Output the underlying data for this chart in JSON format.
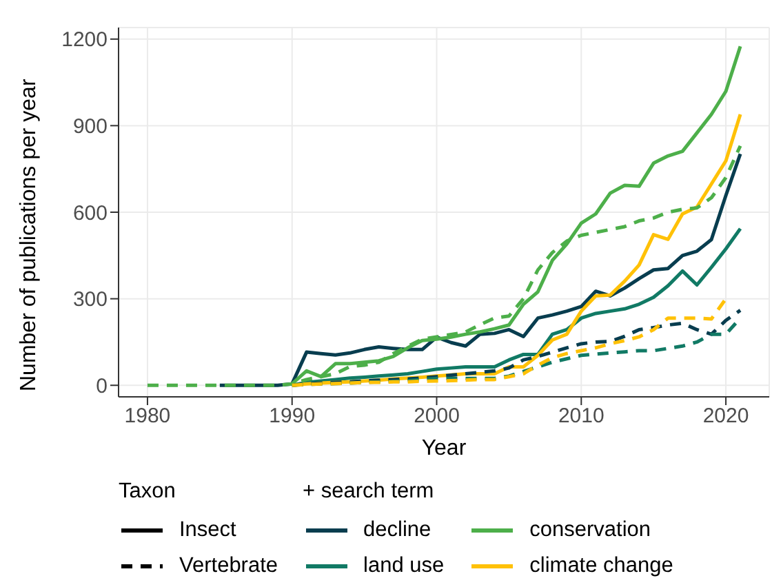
{
  "chart_data": {
    "type": "line",
    "xlabel": "Year",
    "ylabel": "Number of publications per year",
    "legend_title": "+ search term",
    "annotations": [
      "Taxon",
      "Insect",
      "Vertebrate"
    ],
    "legend": "bottom",
    "grid": true,
    "xlim": [
      1978,
      2023
    ],
    "xticks": [
      1980,
      1990,
      2000,
      2010,
      2020
    ],
    "ylim": [
      -40,
      1240
    ],
    "yticks": [
      0,
      300,
      600,
      900,
      1200
    ],
    "x": [
      1980,
      1981,
      1982,
      1983,
      1984,
      1985,
      1986,
      1987,
      1988,
      1989,
      1990,
      1991,
      1992,
      1993,
      1994,
      1995,
      1996,
      1997,
      1998,
      1999,
      2000,
      2001,
      2002,
      2003,
      2004,
      2005,
      2006,
      2007,
      2008,
      2009,
      2010,
      2011,
      2012,
      2013,
      2014,
      2015,
      2016,
      2017,
      2018,
      2019,
      2020,
      2021
    ],
    "series": [
      {
        "name": "decline",
        "color": "#083d4f",
        "line_style": "solid",
        "values": [
          null,
          null,
          null,
          null,
          null,
          0,
          0,
          0,
          0,
          0,
          5,
          115,
          110,
          105,
          112,
          124,
          133,
          128,
          124,
          124,
          167,
          148,
          136,
          177,
          180,
          193,
          169,
          233,
          244,
          257,
          273,
          326,
          310,
          337,
          370,
          400,
          405,
          450,
          465,
          505,
          658,
          802
        ]
      },
      {
        "name": "land use",
        "color": "#117a65",
        "line_style": "solid",
        "values": [
          null,
          null,
          null,
          null,
          null,
          null,
          null,
          null,
          null,
          null,
          0,
          10,
          15,
          20,
          25,
          28,
          32,
          36,
          40,
          48,
          56,
          60,
          64,
          64,
          64,
          88,
          107,
          107,
          177,
          193,
          233,
          249,
          257,
          265,
          281,
          305,
          345,
          396,
          348,
          409,
          473,
          543
        ]
      },
      {
        "name": "conservation",
        "color": "#4daf4a",
        "line_style": "solid",
        "values": [
          null,
          null,
          null,
          null,
          null,
          null,
          null,
          null,
          null,
          null,
          5,
          50,
          30,
          75,
          75,
          80,
          85,
          100,
          130,
          155,
          160,
          167,
          177,
          185,
          196,
          209,
          281,
          324,
          433,
          490,
          562,
          594,
          666,
          693,
          690,
          770,
          795,
          811,
          875,
          939,
          1019,
          1175
        ]
      },
      {
        "name": "climate change",
        "color": "#ffc107",
        "line_style": "solid",
        "values": [
          null,
          null,
          null,
          null,
          null,
          null,
          null,
          null,
          null,
          null,
          0,
          5,
          8,
          10,
          12,
          15,
          18,
          22,
          25,
          28,
          32,
          36,
          40,
          40,
          40,
          64,
          64,
          104,
          157,
          177,
          257,
          310,
          313,
          361,
          417,
          522,
          506,
          594,
          618,
          698,
          778,
          939
        ]
      },
      {
        "color": "#083d4f",
        "line_style": "dashed",
        "values": [
          null,
          null,
          null,
          null,
          null,
          null,
          null,
          null,
          null,
          null,
          0,
          5,
          8,
          10,
          12,
          15,
          18,
          20,
          22,
          25,
          30,
          35,
          40,
          45,
          50,
          60,
          88,
          100,
          115,
          130,
          144,
          150,
          152,
          170,
          193,
          200,
          209,
          215,
          193,
          177,
          225,
          260
        ]
      },
      {
        "color": "#117a65",
        "line_style": "dashed",
        "values": [
          null,
          null,
          null,
          null,
          null,
          null,
          null,
          null,
          null,
          null,
          0,
          3,
          5,
          6,
          8,
          10,
          12,
          14,
          16,
          20,
          24,
          24,
          24,
          24,
          24,
          32,
          48,
          64,
          80,
          92,
          104,
          108,
          112,
          116,
          120,
          120,
          128,
          136,
          150,
          177,
          177,
          233
        ]
      },
      {
        "color": "#4daf4a",
        "line_style": "dashed",
        "values": [
          0,
          0,
          0,
          0,
          0,
          0,
          0,
          0,
          0,
          0,
          5,
          20,
          30,
          40,
          65,
          70,
          80,
          110,
          135,
          160,
          168,
          176,
          185,
          210,
          233,
          240,
          300,
          400,
          460,
          500,
          520,
          530,
          540,
          550,
          570,
          580,
          600,
          610,
          615,
          650,
          720,
          830
        ]
      },
      {
        "color": "#ffc107",
        "line_style": "dashed",
        "values": [
          null,
          null,
          null,
          null,
          null,
          null,
          null,
          null,
          null,
          null,
          0,
          3,
          5,
          6,
          8,
          10,
          10,
          12,
          12,
          14,
          15,
          16,
          18,
          20,
          20,
          30,
          40,
          70,
          96,
          110,
          120,
          130,
          144,
          155,
          168,
          193,
          233,
          233,
          233,
          230,
          300,
          null
        ]
      }
    ]
  }
}
